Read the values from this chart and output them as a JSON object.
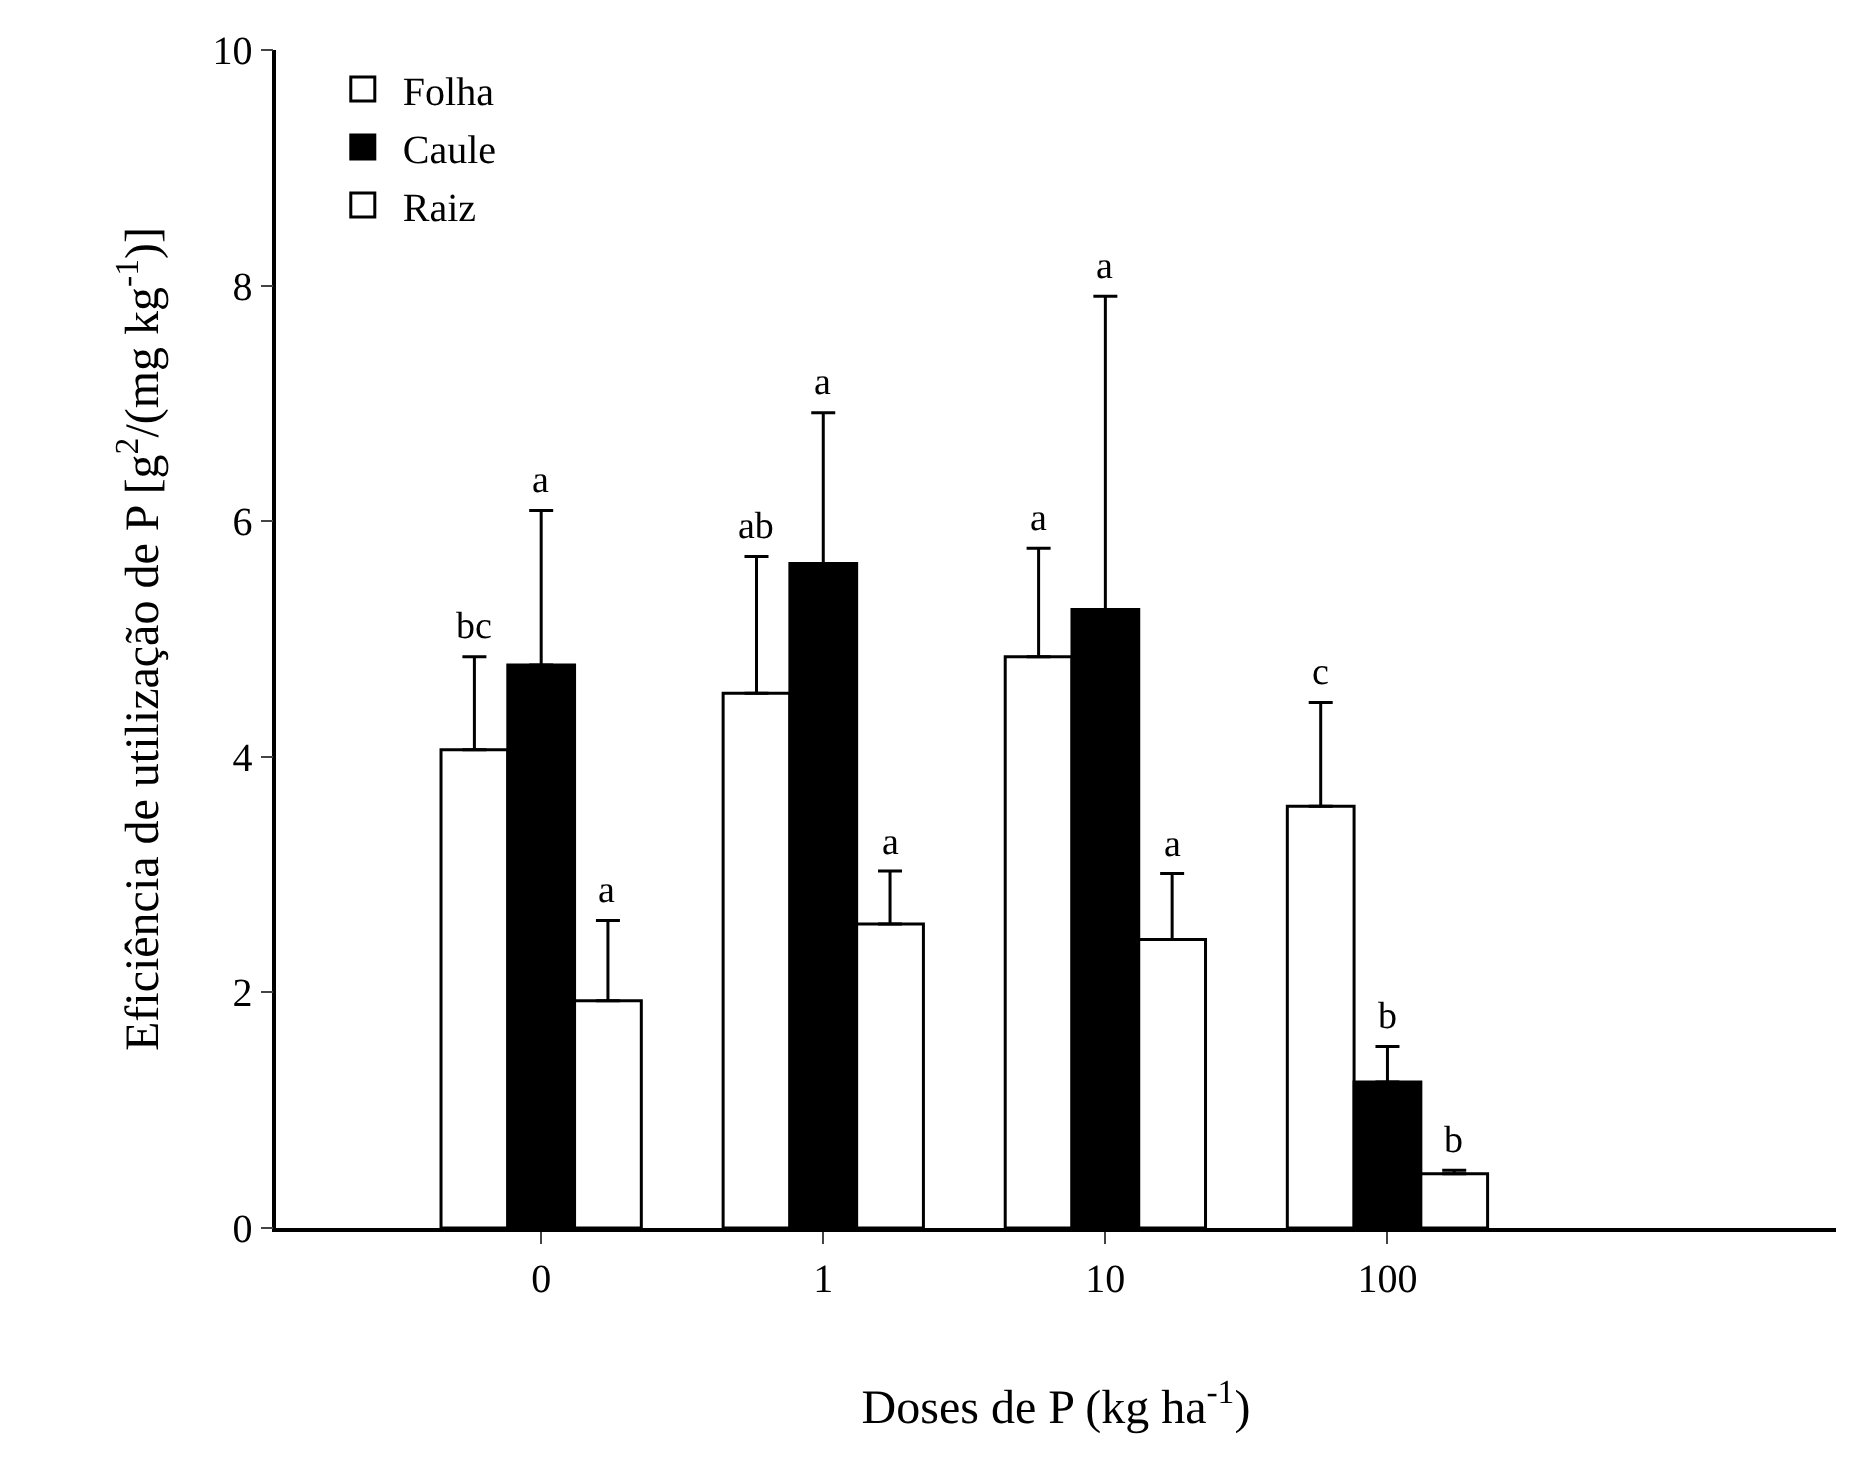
{
  "chart_data": {
    "type": "bar",
    "xlabel": "Doses de P (kg ha$^{-1}$)",
    "ylabel": "Eficiência de utilização de P [g$^{2}$/(mg kg$^{-1}$)]",
    "categories": [
      "0",
      "1",
      "10",
      "100"
    ],
    "series": [
      {
        "name": "Folha",
        "color": "#ffffff",
        "values": [
          4.06,
          4.54,
          4.85,
          3.58
        ],
        "errors": [
          [
            4.06,
            4.85
          ],
          [
            4.54,
            5.7
          ],
          [
            4.85,
            5.77
          ],
          [
            3.58,
            4.46
          ]
        ]
      },
      {
        "name": "Caule",
        "color": "#000000",
        "values": [
          4.78,
          5.64,
          5.25,
          1.24
        ],
        "errors": [
          [
            4.78,
            6.09
          ],
          [
            5.64,
            6.92
          ],
          [
            5.25,
            7.91
          ],
          [
            1.24,
            1.54
          ]
        ]
      },
      {
        "name": "Raiz",
        "color": "#ffffff",
        "values": [
          1.93,
          2.58,
          2.45,
          0.46
        ],
        "errors": [
          [
            1.93,
            2.61
          ],
          [
            2.58,
            3.03
          ],
          [
            2.45,
            3.01
          ],
          [
            0.46,
            0.49
          ]
        ]
      }
    ],
    "annotations": [
      "bc",
      "a",
      "a",
      "ab",
      "a",
      "a",
      "a",
      "a",
      "a",
      "c",
      "b",
      "b"
    ],
    "ylim": [
      0,
      10
    ],
    "yticks": [
      0,
      2,
      4,
      6,
      8,
      10
    ],
    "grid": false,
    "legend": "top left"
  }
}
